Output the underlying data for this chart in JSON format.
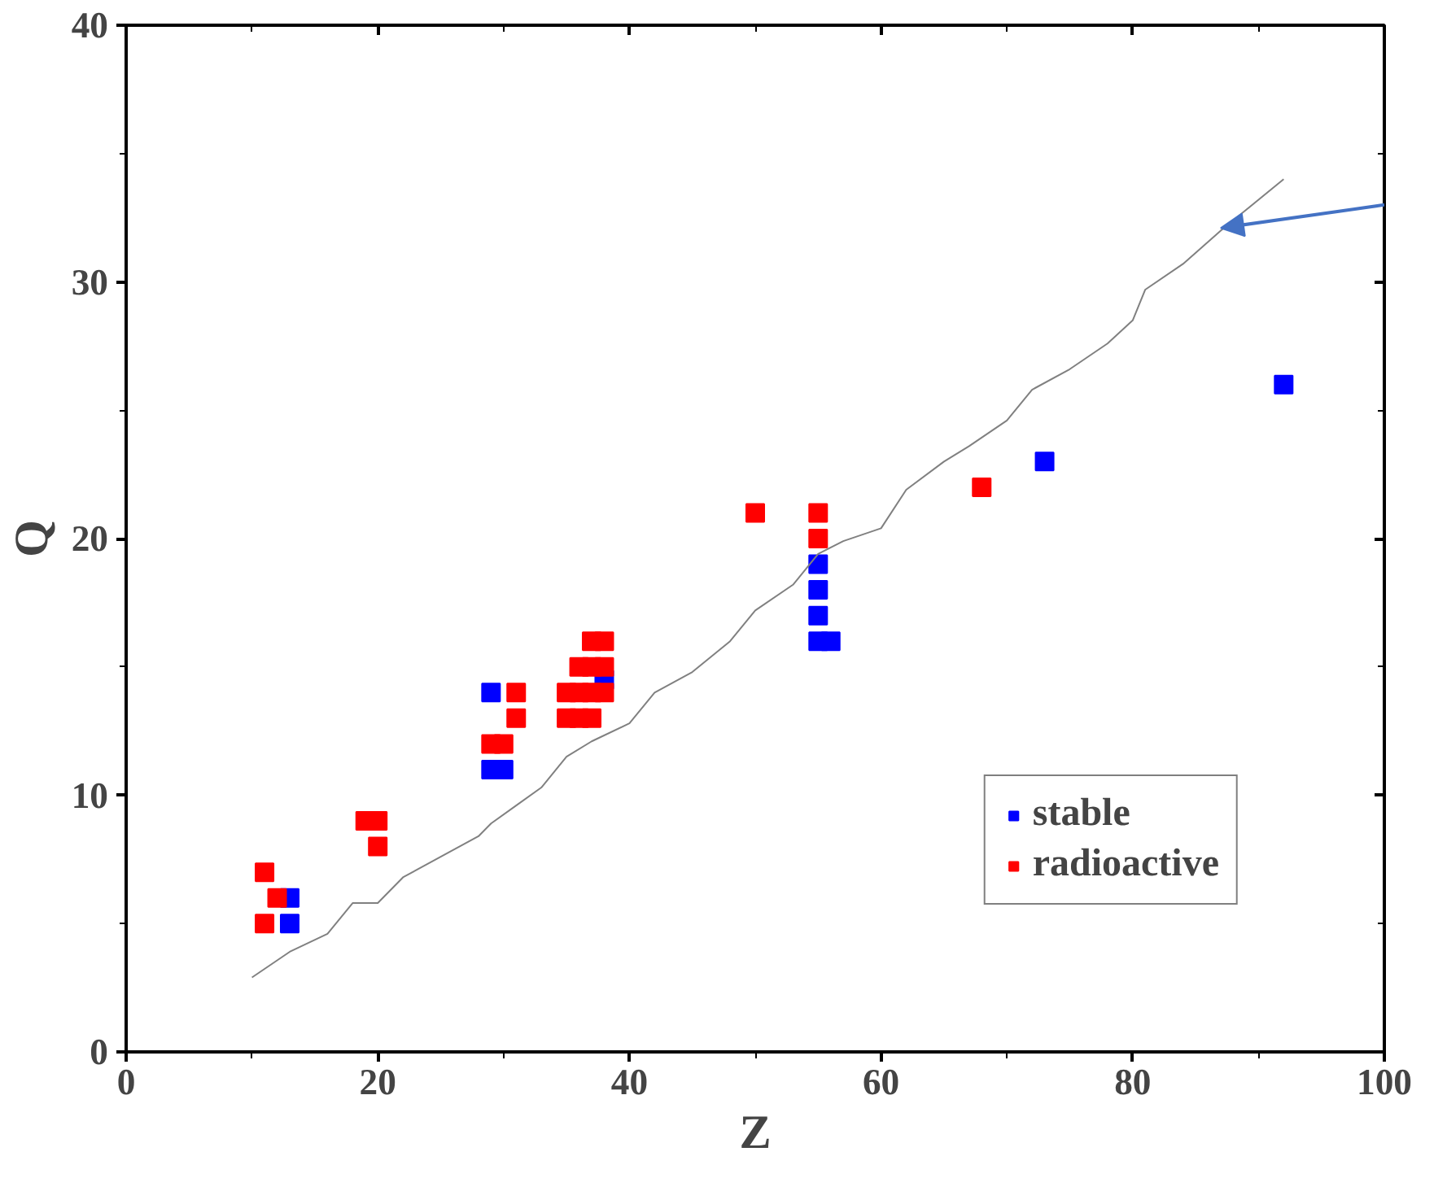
{
  "chart_data": {
    "type": "scatter",
    "xlabel": "Z",
    "ylabel": "Q",
    "xlim": [
      0,
      100
    ],
    "ylim": [
      0,
      40
    ],
    "xticks": [
      0,
      20,
      40,
      60,
      80,
      100
    ],
    "yticks": [
      0,
      10,
      20,
      30,
      40
    ],
    "grid": false,
    "legend": "bottom right",
    "marker": "square",
    "series": [
      {
        "name": "stable",
        "color": "#0000ff",
        "x": [
          13,
          13,
          29,
          29,
          30,
          38,
          55,
          55,
          55,
          55,
          56,
          73,
          92
        ],
        "values": [
          6,
          5,
          14,
          11,
          11,
          14.5,
          19,
          18,
          17,
          16,
          16,
          23,
          26
        ]
      },
      {
        "name": "radioactive",
        "color": "#ff0000",
        "x": [
          11,
          12,
          11,
          19,
          20,
          20,
          29,
          30,
          31,
          31,
          35,
          36,
          37,
          38,
          35,
          36,
          37,
          36,
          37,
          38,
          37,
          38,
          50,
          55,
          55,
          68
        ],
        "values": [
          7,
          6,
          5,
          9,
          9,
          8,
          12,
          12,
          14,
          13,
          14,
          14,
          14,
          14,
          13,
          13,
          13,
          15,
          15,
          15,
          16,
          16,
          21,
          21,
          20,
          22
        ]
      },
      {
        "type": "line",
        "color": "#808080",
        "marker": "none",
        "line_style": "solid",
        "x": [
          10,
          13,
          16,
          18,
          20,
          22,
          25,
          28,
          29,
          31,
          33,
          35,
          37,
          40,
          42,
          45,
          48,
          50,
          53,
          55,
          57,
          60,
          62,
          65,
          67,
          70,
          72,
          75,
          78,
          80,
          81,
          84,
          87,
          92
        ],
        "values": [
          2.9,
          3.9,
          4.6,
          5.8,
          5.8,
          6.8,
          7.6,
          8.4,
          8.9,
          9.6,
          10.3,
          11.5,
          12.1,
          12.8,
          14.0,
          14.8,
          16.0,
          17.2,
          18.2,
          19.4,
          19.9,
          20.4,
          21.9,
          23.0,
          23.6,
          24.6,
          25.8,
          26.6,
          27.6,
          28.5,
          29.7,
          30.7,
          32.0,
          34.0
        ]
      }
    ]
  }
}
